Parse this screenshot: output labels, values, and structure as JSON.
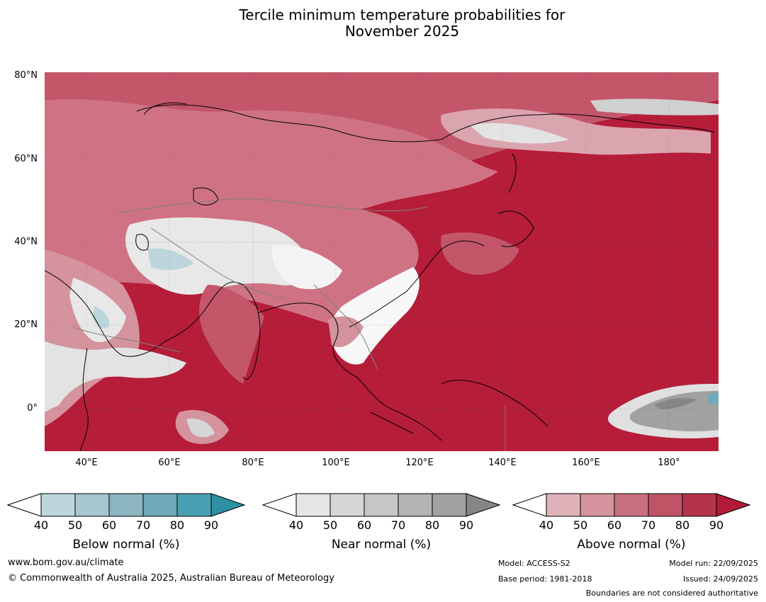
{
  "title_line1": "Tercile minimum temperature probabilities for",
  "title_line2": "November 2025",
  "map": {
    "lat_labels": [
      "80°N",
      "60°N",
      "40°N",
      "20°N",
      "0°"
    ],
    "lon_labels": [
      "40°E",
      "60°E",
      "80°E",
      "100°E",
      "120°E",
      "140°E",
      "160°E",
      "180°"
    ],
    "lat_range": [
      -10,
      81
    ],
    "lon_range": [
      30,
      192
    ],
    "background_color": "#b51d39"
  },
  "colorbars": [
    {
      "name": "below",
      "title": "Below normal (%)",
      "ticks": [
        "40",
        "50",
        "60",
        "70",
        "80",
        "90"
      ],
      "colors": [
        "#ffffff",
        "#bdd6dd",
        "#a6c7cf",
        "#8bb6c1",
        "#6eaab9",
        "#4aa0b2",
        "#2e8fa3"
      ]
    },
    {
      "name": "near",
      "title": "Near normal (%)",
      "ticks": [
        "40",
        "50",
        "60",
        "70",
        "80",
        "90"
      ],
      "colors": [
        "#ffffff",
        "#e5e5e5",
        "#d6d6d6",
        "#c6c6c6",
        "#b3b3b3",
        "#a1a1a1",
        "#868686"
      ]
    },
    {
      "name": "above",
      "title": "Above normal (%)",
      "ticks": [
        "40",
        "50",
        "60",
        "70",
        "80",
        "90"
      ],
      "colors": [
        "#ffffff",
        "#e0b3ba",
        "#d4939d",
        "#c87080",
        "#bf5467",
        "#b5344b",
        "#b21a37"
      ]
    }
  ],
  "footer": {
    "website": "www.bom.gov.au/climate",
    "copyright": "© Commonwealth of Australia 2025, Australian Bureau of Meteorology",
    "model": "Model: ACCESS-S2",
    "base_period": "Base period: 1981-2018",
    "model_run": "Model run: 22/09/2025",
    "issued": "Issued: 24/09/2025",
    "boundaries": "Boundaries are not considered authoritative"
  }
}
